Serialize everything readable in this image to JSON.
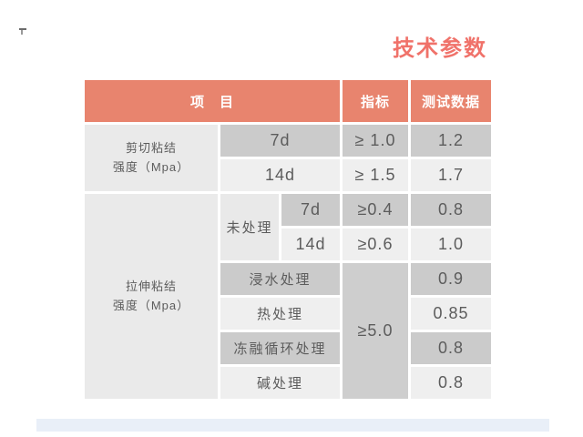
{
  "title": "技术参数",
  "colors": {
    "title_color": "#f0726a",
    "header_bg": "#e8846e",
    "row_dark": "#cbcbcb",
    "row_light": "#efefef",
    "label_bg": "#eaeaea",
    "accent_bar": "#e9eff8"
  },
  "table": {
    "header": [
      "项　目",
      "指标",
      "测试数据"
    ],
    "group1": {
      "label_line1": "剪切粘结",
      "label_line2": "强度（Mpa）",
      "rows": [
        {
          "age": "7d",
          "index": "≥ 1.0",
          "value": "1.2"
        },
        {
          "age": "14d",
          "index": "≥ 1.5",
          "value": "1.7"
        }
      ]
    },
    "group2": {
      "label_line1": "拉伸粘结",
      "label_line2": "强度（Mpa）",
      "untreated_label": "未处理",
      "untreated_rows": [
        {
          "age": "7d",
          "index": "≥0.4",
          "value": "0.8"
        },
        {
          "age": "14d",
          "index": "≥0.6",
          "value": "1.0"
        }
      ],
      "treated_index": "≥5.0",
      "treated_rows": [
        {
          "treatment": "浸水处理",
          "value": "0.9"
        },
        {
          "treatment": "热处理",
          "value": "0.85"
        },
        {
          "treatment": "冻融循环处理",
          "value": "0.8"
        },
        {
          "treatment": "碱处理",
          "value": "0.8"
        }
      ]
    }
  }
}
